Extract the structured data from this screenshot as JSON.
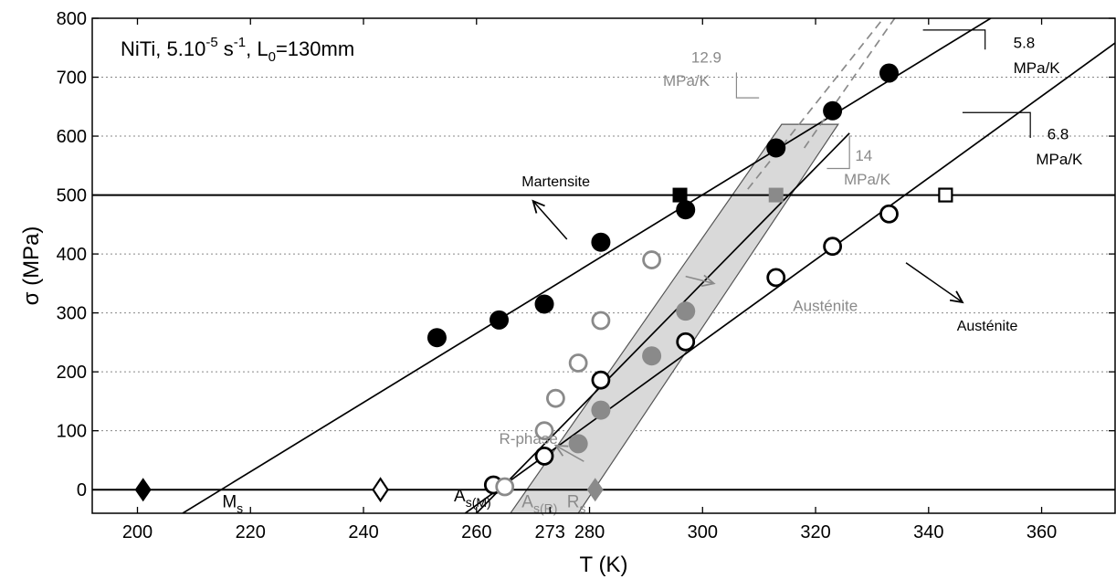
{
  "chart_data": {
    "type": "scatter",
    "title": "",
    "inset_label": {
      "main": "NiTi, 5.10",
      "exp": "-5",
      "mid": " s",
      "exp2": "-1",
      "mid2": ", L",
      "sub": "0",
      "tail": "=130mm"
    },
    "xlabel": "T (K)",
    "ylabel": "σ (MPa)",
    "xlim": [
      192,
      373
    ],
    "ylim": [
      -40,
      800
    ],
    "grid": "dotted-horizontal",
    "xticks": [
      200,
      220,
      240,
      260,
      300,
      320,
      340,
      360
    ],
    "xtick_labels": [
      "200",
      "220",
      "240",
      "260",
      "300",
      "320",
      "340",
      "360"
    ],
    "extra_xticks": [
      273,
      280
    ],
    "extra_xtick_labels": [
      "273",
      "280"
    ],
    "yticks": [
      0,
      100,
      200,
      300,
      400,
      500,
      600,
      700,
      800
    ],
    "ytick_labels": [
      "0",
      "100",
      "200",
      "300",
      "400",
      "500",
      "600",
      "700",
      "800"
    ],
    "colors": {
      "black": "#000000",
      "gray": "#8a8a8a",
      "band": "#d9d9d9"
    },
    "series": [
      {
        "marker": "filled-circle",
        "color": "#000000",
        "points": [
          [
            253,
            258
          ],
          [
            264,
            288
          ],
          [
            272,
            315
          ],
          [
            282,
            420
          ],
          [
            297,
            475
          ],
          [
            313,
            580
          ],
          [
            323,
            643
          ],
          [
            333,
            707
          ]
        ]
      },
      {
        "marker": "open-circle",
        "color": "#000000",
        "points": [
          [
            263,
            8
          ],
          [
            272,
            57
          ],
          [
            282,
            186
          ],
          [
            297,
            251
          ],
          [
            313,
            360
          ],
          [
            323,
            413
          ],
          [
            333,
            468
          ]
        ]
      },
      {
        "marker": "open-circle",
        "color": "#8a8a8a",
        "points": [
          [
            265,
            5
          ],
          [
            272,
            100
          ],
          [
            274,
            155
          ],
          [
            278,
            215
          ],
          [
            282,
            287
          ],
          [
            291,
            390
          ]
        ]
      },
      {
        "marker": "filled-circle",
        "color": "#8a8a8a",
        "points": [
          [
            278,
            78
          ],
          [
            282,
            135
          ],
          [
            291,
            227
          ],
          [
            297,
            303
          ]
        ]
      },
      {
        "marker": "filled-square",
        "color": "#000000",
        "points": [
          [
            296,
            500
          ]
        ]
      },
      {
        "marker": "filled-square",
        "color": "#8a8a8a",
        "points": [
          [
            313,
            500
          ]
        ]
      },
      {
        "marker": "open-square",
        "color": "#000000",
        "points": [
          [
            343,
            500
          ]
        ]
      },
      {
        "marker": "filled-diamond",
        "color": "#000000",
        "points": [
          [
            201,
            0
          ]
        ]
      },
      {
        "marker": "open-diamond",
        "color": "#000000",
        "points": [
          [
            243,
            0
          ]
        ]
      },
      {
        "marker": "filled-diamond",
        "color": "#8a8a8a",
        "points": [
          [
            281,
            0
          ]
        ]
      }
    ],
    "fit_lines": [
      {
        "color": "#000000",
        "dash": false,
        "p1": [
          208,
          -40
        ],
        "p2": [
          351,
          800
        ]
      },
      {
        "color": "#000000",
        "dash": false,
        "p1": [
          258,
          -40
        ],
        "p2": [
          373,
          758
        ]
      },
      {
        "color": "#000000",
        "dash": false,
        "p1": [
          260,
          -40
        ],
        "p2": [
          326,
          605
        ]
      },
      {
        "color": "#8a8a8a",
        "dash": true,
        "p1": [
          308,
          510
        ],
        "p2": [
          332,
          800
        ]
      },
      {
        "color": "#8a8a8a",
        "dash": true,
        "p1": [
          318,
          580
        ],
        "p2": [
          334,
          800
        ]
      }
    ],
    "hlines": [
      {
        "y": 500,
        "x1": 192,
        "x2": 373
      },
      {
        "y": 0,
        "x1": 192,
        "x2": 373
      }
    ],
    "band": [
      [
        266,
        -40
      ],
      [
        278,
        -40
      ],
      [
        324,
        620
      ],
      [
        314,
        620
      ]
    ],
    "arrows": [
      {
        "color": "#000000",
        "from": [
          276,
          425
        ],
        "to": [
          270,
          490
        ]
      },
      {
        "color": "#000000",
        "from": [
          336,
          385
        ],
        "to": [
          346,
          318
        ]
      },
      {
        "color": "#8a8a8a",
        "from": [
          297,
          362
        ],
        "to": [
          302,
          350
        ]
      },
      {
        "color": "#8a8a8a",
        "from": [
          279,
          48
        ],
        "to": [
          274,
          75
        ]
      }
    ],
    "annotations": [
      {
        "text": "Martensite",
        "x": 268,
        "y": 515,
        "color": "#000000",
        "size": 16
      },
      {
        "text": "Austénite",
        "x": 345,
        "y": 270,
        "color": "#000000",
        "size": 16
      },
      {
        "text": "Austénite",
        "x": 316,
        "y": 303,
        "color": "#8a8a8a",
        "size": 17
      },
      {
        "text": "R-phase",
        "x": 264,
        "y": 78,
        "color": "#8a8a8a",
        "size": 17
      },
      {
        "text": "12.9",
        "x": 298,
        "y": 725,
        "color": "#8a8a8a",
        "size": 17
      },
      {
        "text": "MPa/K",
        "x": 293,
        "y": 685,
        "color": "#8a8a8a",
        "size": 17
      },
      {
        "text": "14",
        "x": 327,
        "y": 558,
        "color": "#8a8a8a",
        "size": 17
      },
      {
        "text": "MPa/K",
        "x": 325,
        "y": 518,
        "color": "#8a8a8a",
        "size": 17
      },
      {
        "text": "5.8",
        "x": 355,
        "y": 750,
        "color": "#000000",
        "size": 17
      },
      {
        "text": "MPa/K",
        "x": 355,
        "y": 707,
        "color": "#000000",
        "size": 17
      },
      {
        "text": "6.8",
        "x": 361,
        "y": 595,
        "color": "#000000",
        "size": 17
      },
      {
        "text": "MPa/K",
        "x": 359,
        "y": 552,
        "color": "#000000",
        "size": 17
      }
    ],
    "slope_triangles": [
      {
        "color": "#000000",
        "corner": [
          350,
          780
        ],
        "dx": -11,
        "dy": -33
      },
      {
        "color": "#000000",
        "corner": [
          358,
          640
        ],
        "dx": -12,
        "dy": -43
      },
      {
        "color": "#8a8a8a",
        "corner": [
          306,
          665
        ],
        "dx": 4,
        "dy": 43
      },
      {
        "color": "#8a8a8a",
        "corner": [
          326,
          545
        ],
        "dx": -4,
        "dy": 56
      }
    ],
    "temp_markers": [
      {
        "main": "M",
        "sub": "s",
        "x": 215,
        "y": -30,
        "color": "#000000"
      },
      {
        "main": "A",
        "sub": "s(M)",
        "x": 256,
        "y": -20,
        "color": "#000000"
      },
      {
        "main": "A",
        "sub": "s(R)",
        "x": 268,
        "y": -30,
        "color": "#8a8a8a"
      },
      {
        "main": "R",
        "sub": "s",
        "x": 276,
        "y": -30,
        "color": "#8a8a8a"
      }
    ]
  }
}
